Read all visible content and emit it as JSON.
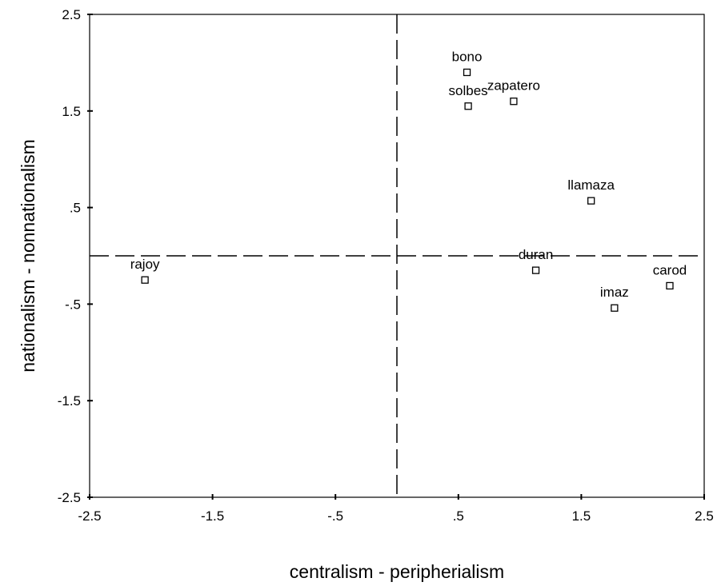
{
  "chart_data": {
    "type": "scatter",
    "xlabel": "centralism - peripherialism",
    "ylabel": "nationalism - nonnationalism",
    "xlim": [
      -2.5,
      2.5
    ],
    "ylim": [
      -2.5,
      2.5
    ],
    "x_ticks": [
      -2.5,
      -1.5,
      -0.5,
      0.5,
      1.5,
      2.5
    ],
    "x_tick_labels": [
      "-2.5",
      "-1.5",
      "-.5",
      ".5",
      "1.5",
      "2.5"
    ],
    "y_ticks": [
      2.5,
      1.5,
      0.5,
      -0.5,
      -1.5,
      -2.5
    ],
    "y_tick_labels": [
      "2.5",
      "1.5",
      ".5",
      "-.5",
      "-1.5",
      "-2.5"
    ],
    "reference_lines": {
      "x": 0,
      "y": 0,
      "style": "dashed"
    },
    "grid": false,
    "points": [
      {
        "label": "bono",
        "x": 0.57,
        "y": 1.9
      },
      {
        "label": "solbes",
        "x": 0.58,
        "y": 1.55
      },
      {
        "label": "zapatero",
        "x": 0.95,
        "y": 1.6
      },
      {
        "label": "llamaza",
        "x": 1.58,
        "y": 0.57
      },
      {
        "label": "duran",
        "x": 1.13,
        "y": -0.15
      },
      {
        "label": "carod",
        "x": 2.22,
        "y": -0.31
      },
      {
        "label": "imaz",
        "x": 1.77,
        "y": -0.54
      },
      {
        "label": "rajoy",
        "x": -2.05,
        "y": -0.25
      }
    ]
  }
}
